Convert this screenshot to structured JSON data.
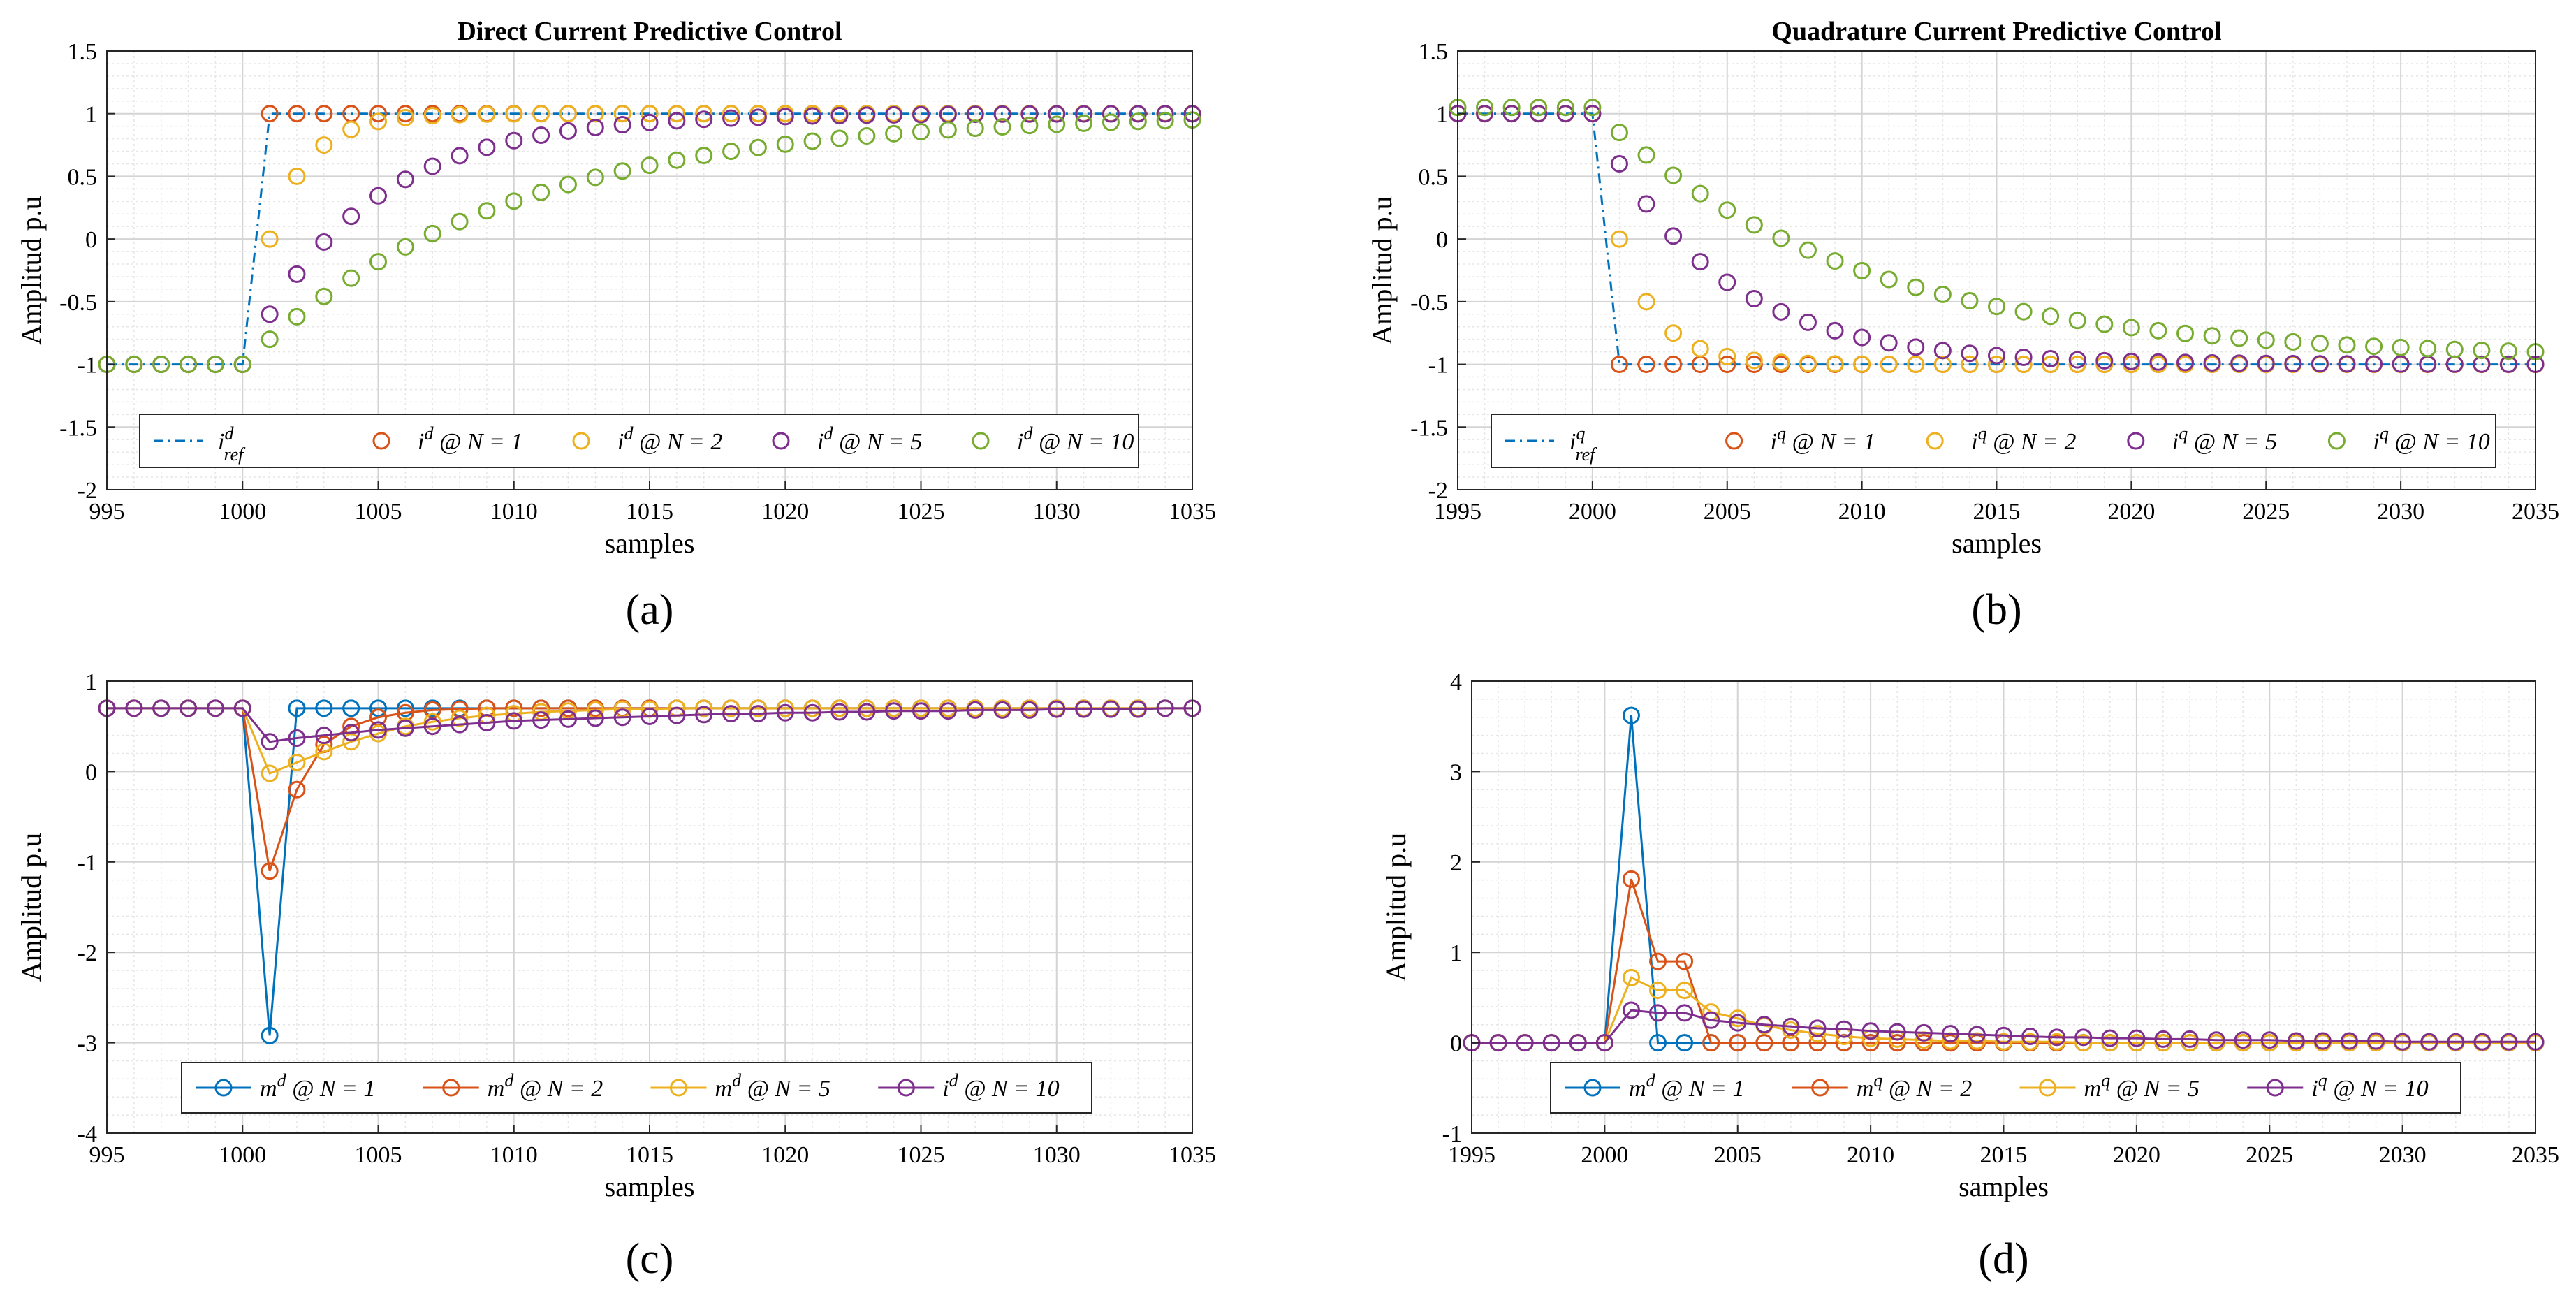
{
  "chart_data": [
    {
      "panel": "a",
      "type": "scatter",
      "title": "Direct Current Predictive Control",
      "xlabel": "samples",
      "ylabel": "Amplitud p.u",
      "xlim": [
        995,
        1035
      ],
      "ylim": [
        -2,
        1.5
      ],
      "xticks": [
        995,
        1000,
        1005,
        1010,
        1015,
        1020,
        1025,
        1030,
        1035
      ],
      "yticks": [
        -2,
        -1.5,
        -1,
        -0.5,
        0,
        0.5,
        1,
        1.5
      ],
      "grid": true,
      "legend": {
        "placement": "bottom",
        "columns": 5
      },
      "caption": "(a)",
      "series": [
        {
          "name": "i^d_ref",
          "style": "dashdot",
          "color": "#0072BD",
          "x": [
            995,
            1000,
            1001,
            1035
          ],
          "y": [
            -1,
            -1,
            1,
            1
          ]
        },
        {
          "name": "i^d @ N = 1",
          "style": "markers",
          "color": "#D95319",
          "rule": "step",
          "start_y": -1,
          "target_y": 1,
          "step_x": 1000,
          "factor": 0
        },
        {
          "name": "i^d @ N = 2",
          "style": "markers",
          "color": "#EDB120",
          "rule": "step",
          "start_y": -1,
          "target_y": 1,
          "step_x": 1000,
          "factor": 0.5
        },
        {
          "name": "i^d @ N = 5",
          "style": "markers",
          "color": "#7E2F8E",
          "rule": "step",
          "start_y": -1,
          "target_y": 1,
          "step_x": 1000,
          "factor": 0.8
        },
        {
          "name": "i^d @ N = 10",
          "style": "markers",
          "color": "#77AC30",
          "rule": "step",
          "start_y": -1,
          "target_y": 1,
          "step_x": 1000,
          "factor": 0.9
        }
      ]
    },
    {
      "panel": "b",
      "type": "scatter",
      "title": "Quadrature Current Predictive Control",
      "xlabel": "samples",
      "ylabel": "Amplitud p.u",
      "xlim": [
        1995,
        2035
      ],
      "ylim": [
        -2,
        1.5
      ],
      "xticks": [
        1995,
        2000,
        2005,
        2010,
        2015,
        2020,
        2025,
        2030,
        2035
      ],
      "yticks": [
        -2,
        -1.5,
        -1,
        -0.5,
        0,
        0.5,
        1,
        1.5
      ],
      "grid": true,
      "legend": {
        "placement": "bottom",
        "columns": 5
      },
      "caption": "(b)",
      "series": [
        {
          "name": "i^q_ref",
          "style": "dashdot",
          "color": "#0072BD",
          "x": [
            1995,
            2000,
            2001,
            2035
          ],
          "y": [
            1,
            1,
            -1,
            -1
          ]
        },
        {
          "name": "i^q @ N = 1",
          "style": "markers",
          "color": "#D95319",
          "rule": "step",
          "start_y": 1.0,
          "target_y": -1,
          "step_x": 2000,
          "factor": 0
        },
        {
          "name": "i^q @ N = 2",
          "style": "markers",
          "color": "#EDB120",
          "rule": "step",
          "start_y": 1.0,
          "target_y": -1,
          "step_x": 2000,
          "factor": 0.5
        },
        {
          "name": "i^q @ N = 5",
          "style": "markers",
          "color": "#7E2F8E",
          "rule": "step",
          "start_y": 1.0,
          "target_y": -1,
          "step_x": 2000,
          "factor": 0.8
        },
        {
          "name": "i^q @ N = 10",
          "style": "markers",
          "color": "#77AC30",
          "rule": "step",
          "start_y": 1.05,
          "target_y": -1,
          "step_x": 2000,
          "factor": 0.9,
          "offset_end": 0.05
        }
      ]
    },
    {
      "panel": "c",
      "type": "line",
      "xlabel": "samples",
      "ylabel": "Amplitud p.u",
      "xlim": [
        995,
        1035
      ],
      "ylim": [
        -4,
        1
      ],
      "xticks": [
        995,
        1000,
        1005,
        1010,
        1015,
        1020,
        1025,
        1030,
        1035
      ],
      "yticks": [
        -4,
        -3,
        -2,
        -1,
        0,
        1
      ],
      "grid": true,
      "legend": {
        "placement": "bottom",
        "columns": 4
      },
      "caption": "(c)",
      "series": [
        {
          "name": "m^d @ N = 1",
          "style": "line-markers",
          "color": "#0072BD",
          "x": [
            995,
            996,
            997,
            998,
            999,
            1000,
            1001,
            1002,
            1003,
            1004,
            1005,
            1006,
            1007,
            1008,
            1009,
            1010,
            1011,
            1012,
            1013,
            1014,
            1015,
            1016,
            1017,
            1018,
            1019,
            1020,
            1021,
            1022,
            1023,
            1024,
            1025,
            1026,
            1027,
            1028,
            1029,
            1030,
            1031,
            1032,
            1033,
            1034,
            1035
          ],
          "y": [
            0.7,
            0.7,
            0.7,
            0.7,
            0.7,
            0.7,
            -2.92,
            0.7,
            0.7,
            0.7,
            0.7,
            0.7,
            0.7,
            0.7,
            0.7,
            0.7,
            0.7,
            0.7,
            0.7,
            0.7,
            0.7,
            0.7,
            0.7,
            0.7,
            0.7,
            0.7,
            0.7,
            0.7,
            0.7,
            0.7,
            0.7,
            0.7,
            0.7,
            0.7,
            0.7,
            0.7,
            0.7,
            0.7,
            0.7,
            0.7,
            0.7
          ]
        },
        {
          "name": "m^d @ N = 2",
          "style": "line-markers",
          "color": "#D95319",
          "x": [
            995,
            996,
            997,
            998,
            999,
            1000,
            1001,
            1002,
            1003,
            1004,
            1005,
            1006,
            1007,
            1008,
            1009,
            1010,
            1011,
            1012,
            1013,
            1014,
            1015,
            1016,
            1017,
            1018,
            1019,
            1020,
            1021,
            1022,
            1023,
            1024,
            1025,
            1026,
            1027,
            1028,
            1029,
            1030,
            1031,
            1032,
            1033,
            1034,
            1035
          ],
          "y": [
            0.7,
            0.7,
            0.7,
            0.7,
            0.7,
            0.7,
            -1.1,
            -0.2,
            0.3,
            0.5,
            0.6,
            0.65,
            0.68,
            0.69,
            0.7,
            0.7,
            0.7,
            0.7,
            0.7,
            0.7,
            0.7,
            0.7,
            0.7,
            0.7,
            0.7,
            0.7,
            0.7,
            0.7,
            0.7,
            0.7,
            0.7,
            0.7,
            0.7,
            0.7,
            0.7,
            0.7,
            0.7,
            0.7,
            0.7,
            0.7,
            0.7
          ]
        },
        {
          "name": "m^d @ N = 5",
          "style": "line-markers",
          "color": "#EDB120",
          "x": [
            995,
            996,
            997,
            998,
            999,
            1000,
            1001,
            1002,
            1003,
            1004,
            1005,
            1006,
            1007,
            1008,
            1009,
            1010,
            1011,
            1012,
            1013,
            1014,
            1015,
            1016,
            1017,
            1018,
            1019,
            1020,
            1021,
            1022,
            1023,
            1024,
            1025,
            1026,
            1027,
            1028,
            1029,
            1030,
            1031,
            1032,
            1033,
            1034,
            1035
          ],
          "y": [
            0.7,
            0.7,
            0.7,
            0.7,
            0.7,
            0.7,
            -0.02,
            0.1,
            0.22,
            0.33,
            0.42,
            0.5,
            0.55,
            0.59,
            0.62,
            0.64,
            0.66,
            0.67,
            0.68,
            0.69,
            0.69,
            0.7,
            0.7,
            0.7,
            0.7,
            0.7,
            0.7,
            0.7,
            0.7,
            0.7,
            0.7,
            0.7,
            0.7,
            0.7,
            0.7,
            0.7,
            0.7,
            0.7,
            0.7,
            0.7,
            0.7
          ]
        },
        {
          "name": "i^d @ N = 10",
          "style": "line-markers",
          "color": "#7E2F8E",
          "x": [
            995,
            996,
            997,
            998,
            999,
            1000,
            1001,
            1002,
            1003,
            1004,
            1005,
            1006,
            1007,
            1008,
            1009,
            1010,
            1011,
            1012,
            1013,
            1014,
            1015,
            1016,
            1017,
            1018,
            1019,
            1020,
            1021,
            1022,
            1023,
            1024,
            1025,
            1026,
            1027,
            1028,
            1029,
            1030,
            1031,
            1032,
            1033,
            1034,
            1035
          ],
          "y": [
            0.7,
            0.7,
            0.7,
            0.7,
            0.7,
            0.7,
            0.33,
            0.37,
            0.4,
            0.43,
            0.46,
            0.48,
            0.5,
            0.52,
            0.54,
            0.56,
            0.57,
            0.58,
            0.59,
            0.6,
            0.61,
            0.62,
            0.63,
            0.64,
            0.64,
            0.65,
            0.65,
            0.66,
            0.66,
            0.67,
            0.67,
            0.67,
            0.68,
            0.68,
            0.68,
            0.69,
            0.69,
            0.69,
            0.69,
            0.7,
            0.7
          ]
        }
      ]
    },
    {
      "panel": "d",
      "type": "line",
      "xlabel": "samples",
      "ylabel": "Amplitud p.u",
      "xlim": [
        1995,
        2035
      ],
      "ylim": [
        -1,
        4
      ],
      "xticks": [
        1995,
        2000,
        2005,
        2010,
        2015,
        2020,
        2025,
        2030,
        2035
      ],
      "yticks": [
        -1,
        0,
        1,
        2,
        3,
        4
      ],
      "grid": true,
      "legend": {
        "placement": "bottom",
        "columns": 4
      },
      "caption": "(d)",
      "series": [
        {
          "name": "m^d @ N = 1",
          "style": "line-markers",
          "color": "#0072BD",
          "x": [
            1995,
            1996,
            1997,
            1998,
            1999,
            2000,
            2001,
            2002,
            2003,
            2004,
            2005,
            2006,
            2007,
            2008,
            2009,
            2010,
            2011,
            2012,
            2013,
            2014,
            2015,
            2016,
            2017,
            2018,
            2019,
            2020,
            2021,
            2022,
            2023,
            2024,
            2025,
            2026,
            2027,
            2028,
            2029,
            2030,
            2031,
            2032,
            2033,
            2034,
            2035
          ],
          "y": [
            0,
            0,
            0,
            0,
            0,
            0,
            3.62,
            0,
            0,
            0,
            0,
            0,
            0,
            0,
            0,
            0,
            0,
            0,
            0,
            0,
            0,
            0,
            0,
            0,
            0,
            0,
            0,
            0,
            0,
            0,
            0,
            0,
            0,
            0,
            0,
            0,
            0,
            0,
            0,
            0,
            0
          ]
        },
        {
          "name": "m^q @ N = 2",
          "style": "line-markers",
          "color": "#D95319",
          "x": [
            1995,
            1996,
            1997,
            1998,
            1999,
            2000,
            2001,
            2002,
            2003,
            2004,
            2005,
            2006,
            2007,
            2008,
            2009,
            2010,
            2011,
            2012,
            2013,
            2014,
            2015,
            2016,
            2017,
            2018,
            2019,
            2020,
            2021,
            2022,
            2023,
            2024,
            2025,
            2026,
            2027,
            2028,
            2029,
            2030,
            2031,
            2032,
            2033,
            2034,
            2035
          ],
          "y": [
            0,
            0,
            0,
            0,
            0,
            0,
            1.81,
            0.9,
            0.9,
            0,
            0,
            0,
            0,
            0,
            0,
            0,
            0,
            0,
            0,
            0,
            0,
            0,
            0,
            0,
            0,
            0,
            0,
            0,
            0,
            0,
            0,
            0,
            0,
            0,
            0,
            0,
            0,
            0,
            0,
            0,
            0
          ]
        },
        {
          "name": "m^q @ N = 5",
          "style": "line-markers",
          "color": "#EDB120",
          "x": [
            1995,
            1996,
            1997,
            1998,
            1999,
            2000,
            2001,
            2002,
            2003,
            2004,
            2005,
            2006,
            2007,
            2008,
            2009,
            2010,
            2011,
            2012,
            2013,
            2014,
            2015,
            2016,
            2017,
            2018,
            2019,
            2020,
            2021,
            2022,
            2023,
            2024,
            2025,
            2026,
            2027,
            2028,
            2029,
            2030,
            2031,
            2032,
            2033,
            2034,
            2035
          ],
          "y": [
            0,
            0,
            0,
            0,
            0,
            0,
            0.72,
            0.58,
            0.58,
            0.34,
            0.27,
            0.19,
            0.14,
            0.1,
            0.07,
            0.05,
            0.04,
            0.03,
            0.02,
            0.02,
            0.01,
            0.01,
            0.01,
            0,
            0,
            0,
            0,
            0,
            0,
            0,
            0,
            0,
            0,
            0,
            0,
            0,
            0,
            0,
            0,
            0,
            0
          ]
        },
        {
          "name": "i^q @ N = 10",
          "style": "line-markers",
          "color": "#7E2F8E",
          "x": [
            1995,
            1996,
            1997,
            1998,
            1999,
            2000,
            2001,
            2002,
            2003,
            2004,
            2005,
            2006,
            2007,
            2008,
            2009,
            2010,
            2011,
            2012,
            2013,
            2014,
            2015,
            2016,
            2017,
            2018,
            2019,
            2020,
            2021,
            2022,
            2023,
            2024,
            2025,
            2026,
            2027,
            2028,
            2029,
            2030,
            2031,
            2032,
            2033,
            2034,
            2035
          ],
          "y": [
            0,
            0,
            0,
            0,
            0,
            0,
            0.36,
            0.33,
            0.33,
            0.25,
            0.22,
            0.2,
            0.18,
            0.16,
            0.15,
            0.13,
            0.12,
            0.11,
            0.1,
            0.09,
            0.08,
            0.07,
            0.06,
            0.06,
            0.05,
            0.05,
            0.04,
            0.04,
            0.03,
            0.03,
            0.03,
            0.02,
            0.02,
            0.02,
            0.02,
            0.01,
            0.01,
            0.01,
            0.01,
            0.01,
            0.01
          ]
        }
      ]
    }
  ]
}
